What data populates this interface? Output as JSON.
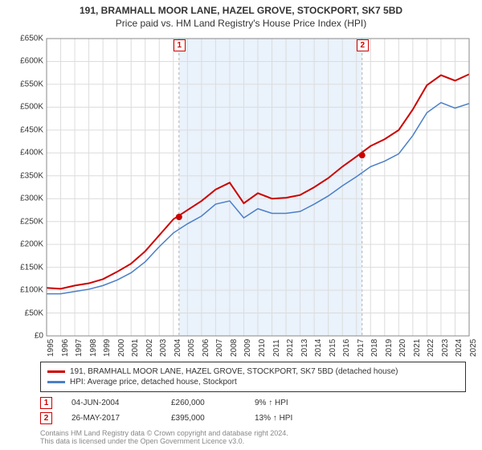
{
  "title_line1": "191, BRAMHALL MOOR LANE, HAZEL GROVE, STOCKPORT, SK7 5BD",
  "title_line2": "Price paid vs. HM Land Registry's House Price Index (HPI)",
  "chart": {
    "type": "line",
    "background_color": "#ffffff",
    "plot_border_color": "#888888",
    "grid_color": "#dcdcdc",
    "axis_font_size": 10,
    "ylim": [
      0,
      650000
    ],
    "ytick_step": 50000,
    "ytick_labels": [
      "£0",
      "£50K",
      "£100K",
      "£150K",
      "£200K",
      "£250K",
      "£300K",
      "£350K",
      "£400K",
      "£450K",
      "£500K",
      "£550K",
      "£600K",
      "£650K"
    ],
    "x_years": [
      1995,
      1996,
      1997,
      1998,
      1999,
      2000,
      2001,
      2002,
      2003,
      2004,
      2005,
      2006,
      2007,
      2008,
      2009,
      2010,
      2011,
      2012,
      2013,
      2014,
      2015,
      2016,
      2017,
      2018,
      2019,
      2020,
      2021,
      2022,
      2023,
      2024,
      2025
    ],
    "shade_start_year": 2004.4,
    "shade_end_year": 2017.4,
    "shade_fill": "#eaf2fb",
    "shade_border": "#b0b0b0",
    "series": [
      {
        "name": "property",
        "color": "#cc0000",
        "width": 2,
        "values_by_year": {
          "1995": 105000,
          "1996": 103000,
          "1997": 110000,
          "1998": 115000,
          "1999": 124000,
          "2000": 140000,
          "2001": 158000,
          "2002": 185000,
          "2003": 220000,
          "2004": 255000,
          "2005": 275000,
          "2006": 295000,
          "2007": 320000,
          "2008": 335000,
          "2009": 290000,
          "2010": 312000,
          "2011": 300000,
          "2012": 302000,
          "2013": 308000,
          "2014": 325000,
          "2015": 345000,
          "2016": 370000,
          "2017": 392000,
          "2018": 415000,
          "2019": 430000,
          "2020": 450000,
          "2021": 495000,
          "2022": 548000,
          "2023": 570000,
          "2024": 558000,
          "2025": 572000
        }
      },
      {
        "name": "hpi",
        "color": "#4a7fc7",
        "width": 1.5,
        "values_by_year": {
          "1995": 92000,
          "1996": 92000,
          "1997": 97000,
          "1998": 102000,
          "1999": 110000,
          "2000": 122000,
          "2001": 138000,
          "2002": 162000,
          "2003": 195000,
          "2004": 225000,
          "2005": 245000,
          "2006": 262000,
          "2007": 288000,
          "2008": 295000,
          "2009": 258000,
          "2010": 278000,
          "2011": 268000,
          "2012": 268000,
          "2013": 272000,
          "2014": 288000,
          "2015": 306000,
          "2016": 328000,
          "2017": 348000,
          "2018": 370000,
          "2019": 382000,
          "2020": 398000,
          "2021": 438000,
          "2022": 488000,
          "2023": 510000,
          "2024": 498000,
          "2025": 508000
        }
      }
    ],
    "markers": [
      {
        "idx": "1",
        "year": 2004.4,
        "value": 260000,
        "color": "#cc0000",
        "label_y_offset": -300000
      },
      {
        "idx": "2",
        "year": 2017.4,
        "value": 395000,
        "color": "#cc0000",
        "label_y_offset": -275000
      }
    ]
  },
  "legend": {
    "series": [
      {
        "color": "#cc0000",
        "label": "191, BRAMHALL MOOR LANE, HAZEL GROVE, STOCKPORT, SK7 5BD (detached house)"
      },
      {
        "color": "#4a7fc7",
        "label": "HPI: Average price, detached house, Stockport"
      }
    ]
  },
  "sales": [
    {
      "idx": "1",
      "color": "#cc0000",
      "date": "04-JUN-2004",
      "price": "£260,000",
      "delta": "9% ↑ HPI"
    },
    {
      "idx": "2",
      "color": "#cc0000",
      "date": "26-MAY-2017",
      "price": "£395,000",
      "delta": "13% ↑ HPI"
    }
  ],
  "footer_line1": "Contains HM Land Registry data © Crown copyright and database right 2024.",
  "footer_line2": "This data is licensed under the Open Government Licence v3.0."
}
